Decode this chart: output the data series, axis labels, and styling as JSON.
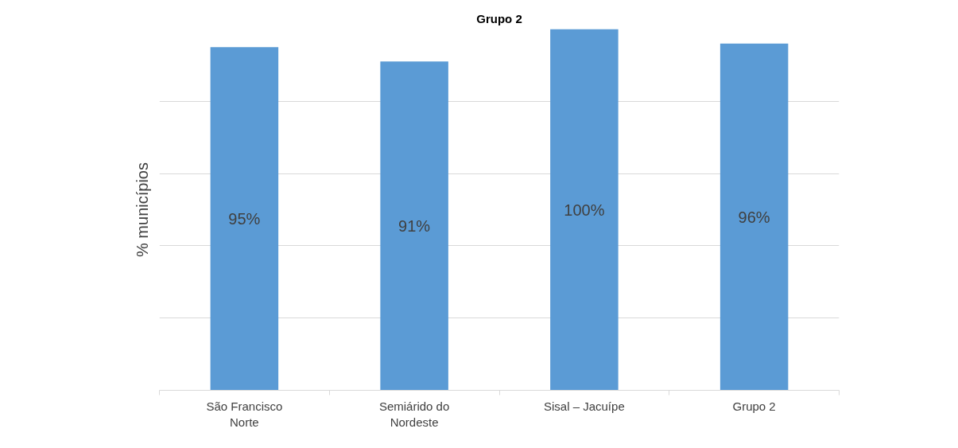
{
  "chart_data": {
    "type": "bar",
    "title": "Grupo 2",
    "ylabel": "% municípios",
    "categories": [
      "São Francisco Norte",
      "Semiárido do Nordeste",
      "Sisal – Jacuípe",
      "Grupo 2"
    ],
    "values": [
      95,
      91,
      100,
      96
    ],
    "color": "#5b9bd5",
    "value_labels": [
      "95%",
      "91%",
      "100%",
      "96%"
    ],
    "ylim": [
      0,
      100
    ],
    "grid": "y",
    "tick_labels": "x"
  }
}
